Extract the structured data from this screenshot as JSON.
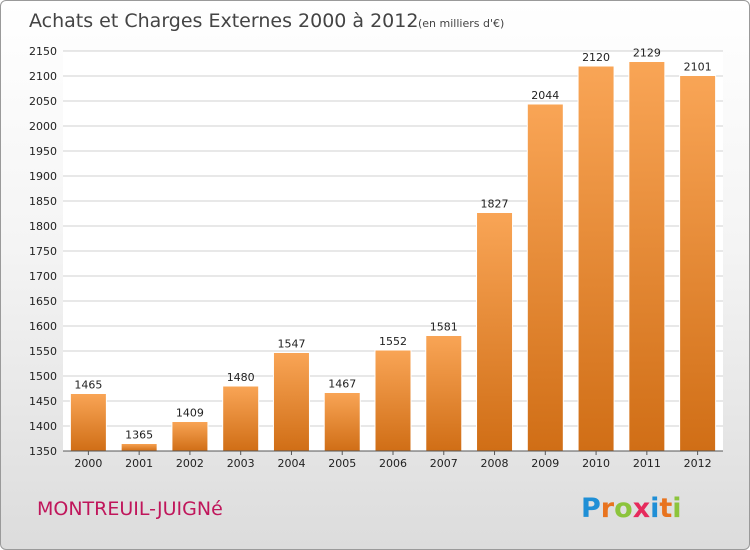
{
  "chart_data": {
    "type": "bar",
    "title": "Achats et Charges Externes 2000 à 2012",
    "subtitle": "(en milliers d'€)",
    "categories": [
      "2000",
      "2001",
      "2002",
      "2003",
      "2004",
      "2005",
      "2006",
      "2007",
      "2008",
      "2009",
      "2010",
      "2011",
      "2012"
    ],
    "values": [
      1465,
      1365,
      1409,
      1480,
      1547,
      1467,
      1552,
      1581,
      1827,
      2044,
      2120,
      2129,
      2101
    ],
    "ylim": [
      1350,
      2150
    ],
    "yticks": [
      1350,
      1400,
      1450,
      1500,
      1550,
      1600,
      1650,
      1700,
      1750,
      1800,
      1850,
      1900,
      1950,
      2000,
      2050,
      2100,
      2150
    ],
    "grid": true,
    "bar_color_top": "#f9a556",
    "bar_color_bottom": "#d06e16",
    "xlabel": "",
    "ylabel": ""
  },
  "footer": {
    "place_name": "MONTREUIL-JUIGNé",
    "logo_letters": [
      {
        "ch": "P",
        "color": "#1f8fd6"
      },
      {
        "ch": "r",
        "color": "#e8731e"
      },
      {
        "ch": "o",
        "color": "#8cc43c"
      },
      {
        "ch": "x",
        "color": "#e62a5c"
      },
      {
        "ch": "i",
        "color": "#1f8fd6"
      },
      {
        "ch": "t",
        "color": "#e8731e"
      },
      {
        "ch": "i",
        "color": "#8cc43c"
      }
    ]
  }
}
